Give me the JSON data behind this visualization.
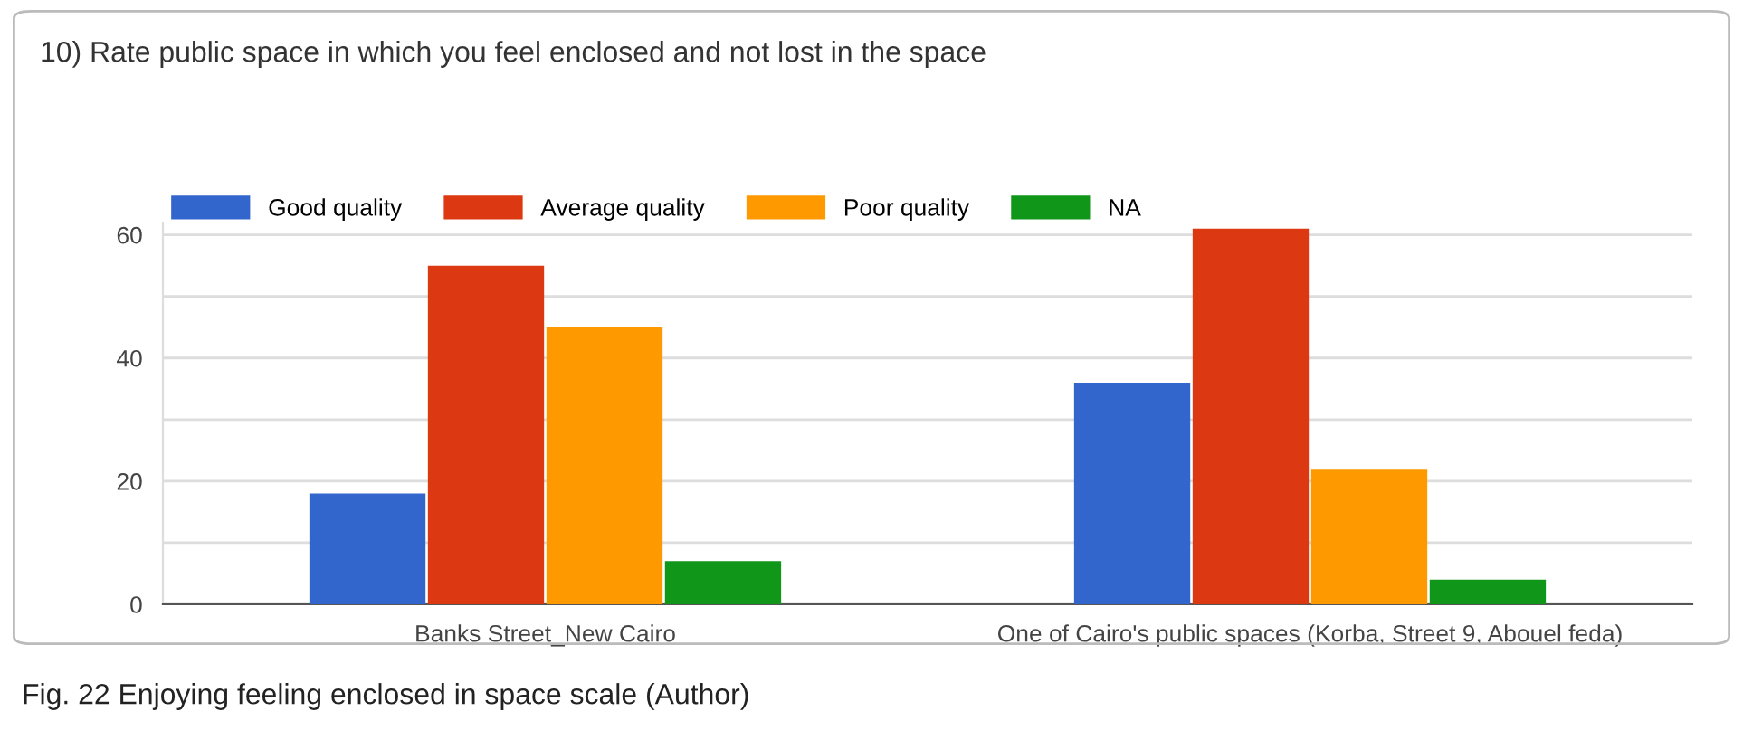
{
  "chart_data": {
    "type": "bar",
    "title": "10) Rate public space in which you feel enclosed and not lost in the space",
    "categories": [
      "Banks Street_New Cairo",
      "One of Cairo's public spaces (Korba, Street 9, Abouel feda)"
    ],
    "series": [
      {
        "name": "Good quality",
        "color": "#3366cc",
        "values": [
          18,
          36
        ]
      },
      {
        "name": "Average quality",
        "color": "#dc3912",
        "values": [
          55,
          61
        ]
      },
      {
        "name": "Poor quality",
        "color": "#ff9900",
        "values": [
          45,
          22
        ]
      },
      {
        "name": "NA",
        "color": "#109618",
        "values": [
          7,
          4
        ]
      }
    ],
    "ylim": [
      0,
      62
    ],
    "yticks": [
      0,
      {
        "value": 10,
        "label": null
      },
      20,
      {
        "value": 30,
        "label": null
      },
      40,
      {
        "value": 50,
        "label": null
      },
      60
    ],
    "grid": "y",
    "legend": "top left",
    "annotations": [
      "Fig. 22 Enjoying feeling enclosed in space scale (Author)"
    ]
  }
}
